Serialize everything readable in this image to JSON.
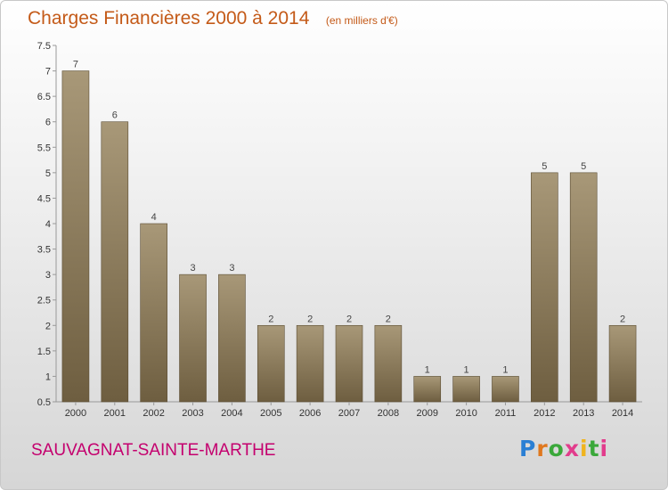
{
  "title": "Charges Financières 2000 à 2014",
  "subtitle": "(en milliers d'€)",
  "place": "SAUVAGNAT-SAINTE-MARTHE",
  "logo": "Proxiti",
  "colors": {
    "bar_top": "#a89878",
    "bar_bottom": "#6e5e40",
    "title": "#c45a18",
    "place": "#c4006e"
  },
  "chart_data": {
    "type": "bar",
    "title": "Charges Financières 2000 à 2014",
    "subtitle": "(en milliers d'€)",
    "categories": [
      "2000",
      "2001",
      "2002",
      "2003",
      "2004",
      "2005",
      "2006",
      "2007",
      "2008",
      "2009",
      "2010",
      "2011",
      "2012",
      "2013",
      "2014"
    ],
    "values": [
      7,
      6,
      4,
      3,
      3,
      2,
      2,
      2,
      2,
      1,
      1,
      1,
      5,
      5,
      2
    ],
    "ylim": [
      0.5,
      7.5
    ],
    "yticks": [
      "0.5",
      "1",
      "1.5",
      "2",
      "2.5",
      "3",
      "3.5",
      "4",
      "4.5",
      "5",
      "5.5",
      "6",
      "6.5",
      "7",
      "7.5"
    ],
    "grid": false,
    "legend": "none"
  }
}
